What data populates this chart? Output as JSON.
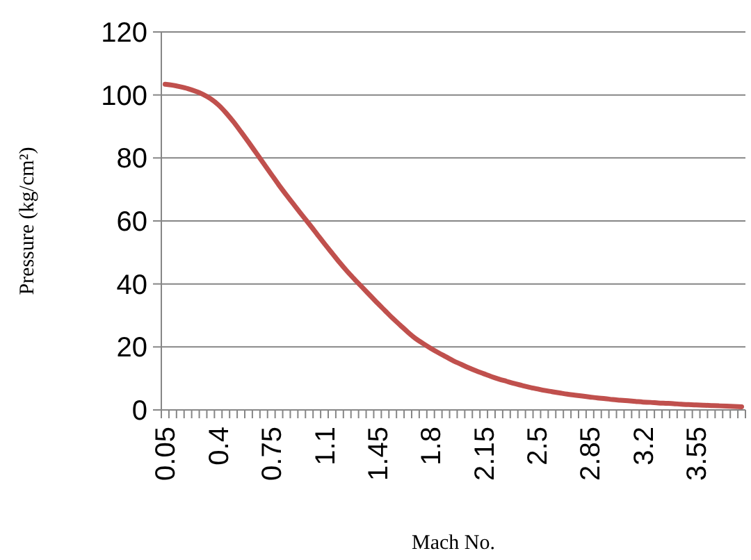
{
  "chart_data": {
    "type": "line",
    "xlabel": "Mach No.",
    "ylabel": "Pressure (kg/cm²)",
    "categories": [
      "0.05",
      null,
      null,
      null,
      null,
      null,
      null,
      "0.4",
      null,
      null,
      null,
      null,
      null,
      null,
      "0.75",
      null,
      null,
      null,
      null,
      null,
      null,
      "1.1",
      null,
      null,
      null,
      null,
      null,
      null,
      "1.45",
      null,
      null,
      null,
      null,
      null,
      null,
      "1.8",
      null,
      null,
      null,
      null,
      null,
      null,
      "2.15",
      null,
      null,
      null,
      null,
      null,
      null,
      "2.5",
      null,
      null,
      null,
      null,
      null,
      null,
      "2.85",
      null,
      null,
      null,
      null,
      null,
      null,
      "3.2",
      null,
      null,
      null,
      null,
      null,
      null,
      "3.55",
      null,
      null,
      null,
      null,
      null,
      null
    ],
    "series": [
      {
        "color": "#c0504d",
        "values": [
          103.4,
          103.1,
          102.6,
          102,
          101.2,
          100.2,
          98.8,
          96.9,
          94.4,
          91.5,
          88.3,
          85,
          81.6,
          78.2,
          74.8,
          71.4,
          68.2,
          65.1,
          62,
          59,
          55.9,
          52.8,
          49.8,
          46.8,
          44,
          41.4,
          38.9,
          36.4,
          33.9,
          31.5,
          29.1,
          26.9,
          24.7,
          22.7,
          21.1,
          19.6,
          18.2,
          16.9,
          15.6,
          14.5,
          13.4,
          12.4,
          11.5,
          10.6,
          9.8,
          9.1,
          8.4,
          7.8,
          7.2,
          6.7,
          6.2,
          5.8,
          5.4,
          5,
          4.7,
          4.4,
          4.1,
          3.8,
          3.6,
          3.3,
          3.1,
          2.9,
          2.7,
          2.5,
          2.4,
          2.2,
          2.1,
          2,
          1.8,
          1.7,
          1.6,
          1.5,
          1.4,
          1.3,
          1.2,
          1.1,
          1
        ]
      }
    ],
    "ylim": [
      0,
      120
    ],
    "yticks": [
      0,
      20,
      40,
      60,
      80,
      100,
      120
    ],
    "grid": "y",
    "marker": "none",
    "line_style": "solid"
  }
}
